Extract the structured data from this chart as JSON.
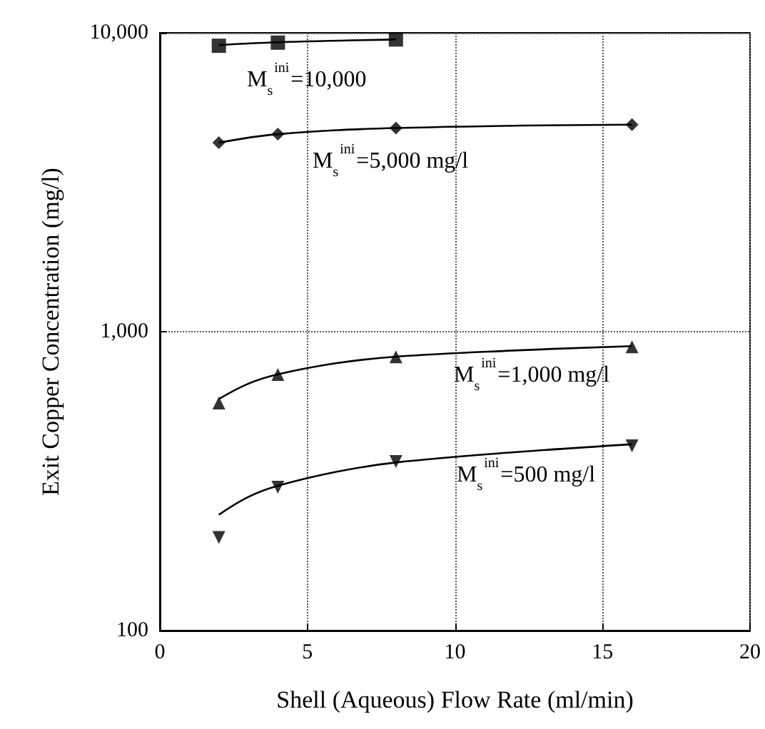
{
  "chart_data": {
    "type": "scatter",
    "xlabel": "Shell (Aqueous) Flow Rate (ml/min)",
    "ylabel": "Exit Copper Concentration (mg/l)",
    "xlim": [
      0,
      20
    ],
    "xticks": [
      0,
      5,
      10,
      15,
      20
    ],
    "ylim": [
      100,
      10000
    ],
    "yticks": [
      {
        "value": 100,
        "label": "100"
      },
      {
        "value": 1000,
        "label": "1,000"
      },
      {
        "value": 10000,
        "label": "10,000"
      }
    ],
    "log": "y",
    "grid": true,
    "series": [
      {
        "marker": "square",
        "color": "#000000",
        "x": [
          2,
          4,
          8
        ],
        "values": [
          9050,
          9270,
          9500
        ]
      },
      {
        "type": "line",
        "marker": "none",
        "line_style": "solid",
        "color": "#000000",
        "x": [
          2,
          4,
          8
        ],
        "values": [
          9100,
          9300,
          9500
        ]
      },
      {
        "marker": "diamond",
        "color": "#000000",
        "x": [
          2,
          4,
          8,
          16
        ],
        "values": [
          4290,
          4580,
          4800,
          4930
        ]
      },
      {
        "type": "line",
        "marker": "none",
        "line_style": "solid",
        "color": "#000000",
        "x": [
          2,
          4,
          8,
          16
        ],
        "values": [
          4290,
          4580,
          4800,
          4930
        ]
      },
      {
        "marker": "triangle",
        "color": "#000000",
        "x": [
          2,
          4,
          8,
          16
        ],
        "values": [
          577,
          719,
          824,
          890
        ]
      },
      {
        "type": "line",
        "marker": "none",
        "line_style": "solid",
        "color": "#000000",
        "x": [
          2,
          3,
          4,
          6,
          8,
          12,
          16
        ],
        "values": [
          595,
          670,
          720,
          785,
          825,
          865,
          895
        ]
      },
      {
        "marker": "triangle-down",
        "color": "#000000",
        "x": [
          2,
          4,
          8,
          16
        ],
        "values": [
          205,
          302,
          368,
          415
        ]
      },
      {
        "type": "line",
        "marker": "none",
        "line_style": "solid",
        "color": "#000000",
        "x": [
          2,
          3,
          4,
          6,
          8,
          12,
          16
        ],
        "values": [
          244,
          280,
          305,
          340,
          365,
          395,
          420
        ]
      }
    ],
    "annotations": [
      "M$_{s}$$^{ini}$=10,000",
      "M$_{s}$$^{ini}$=5,000 mg/l",
      "M$_{s}$$^{ini}$=1,000 mg/l",
      "M$_{s}$$^{ini}$=500 mg/l"
    ]
  }
}
